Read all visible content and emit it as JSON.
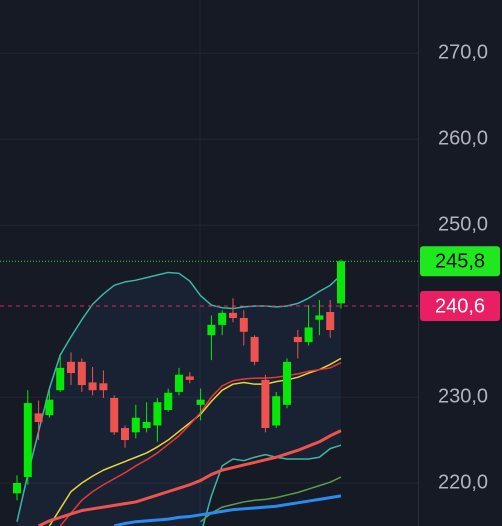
{
  "chart_data": {
    "type": "candlestick",
    "ylim": [
      215.0,
      276.2
    ],
    "yticks": [
      {
        "value": 220,
        "label": "220,0"
      },
      {
        "value": 230,
        "label": "230,0"
      },
      {
        "value": 250,
        "label": "250,0"
      },
      {
        "value": 260,
        "label": "260,0"
      },
      {
        "value": 270,
        "label": "270,0"
      }
    ],
    "grid": true,
    "up_color": "#08e808",
    "down_color": "#ef5350",
    "open": [
      218.8,
      220.7,
      228.1,
      227.9,
      230.8,
      234.1,
      234.1,
      231.7,
      231.6,
      229.9,
      226.4,
      225.9,
      226.4,
      226.7,
      228.5,
      230.6,
      232.4,
      229.1,
      237.2,
      238.4,
      239.8,
      239.2,
      237.0,
      232.0,
      226.7,
      229.1,
      237.0,
      236.4,
      239.0,
      239.9,
      240.9
    ],
    "high": [
      220.9,
      230.8,
      229.6,
      230.8,
      234.9,
      235.2,
      234.5,
      233.5,
      233.1,
      230.2,
      226.7,
      229.1,
      229.4,
      229.9,
      231.0,
      233.4,
      232.9,
      231.0,
      239.5,
      240.1,
      241.5,
      240.1,
      237.2,
      232.6,
      230.6,
      234.5,
      237.8,
      240.7,
      241.3,
      241.3,
      246.0
    ],
    "low": [
      218.0,
      219.8,
      225.0,
      227.6,
      230.6,
      231.4,
      230.6,
      230.2,
      229.9,
      225.6,
      224.1,
      225.2,
      225.9,
      224.8,
      228.3,
      230.2,
      231.6,
      227.3,
      234.3,
      237.2,
      238.7,
      236.0,
      233.7,
      225.9,
      226.4,
      228.7,
      234.5,
      236.0,
      237.2,
      236.9,
      240.3
    ],
    "close": [
      220.0,
      229.3,
      227.1,
      229.7,
      233.4,
      232.8,
      231.4,
      230.8,
      230.8,
      225.9,
      225.0,
      227.6,
      227.1,
      229.4,
      230.5,
      232.6,
      232.0,
      229.7,
      238.4,
      239.8,
      239.2,
      237.6,
      234.1,
      226.4,
      230.1,
      234.1,
      236.4,
      238.1,
      239.5,
      237.8,
      245.8
    ],
    "series": [
      {
        "color": "#3fb5a5",
        "values": [
          215.5,
          221.0,
          226.0,
          231.0,
          234.9,
          237.0,
          239.0,
          240.8,
          242.0,
          243.0,
          243.4,
          243.6,
          243.9,
          244.2,
          244.5,
          244.4,
          243.5,
          241.8,
          240.7,
          240.4,
          240.3,
          240.5,
          240.6,
          240.6,
          240.5,
          240.6,
          240.9,
          241.5,
          242.3,
          243.0,
          244.2
        ]
      },
      {
        "color": "#3fb5a5",
        "values": [
          null,
          null,
          null,
          null,
          null,
          null,
          null,
          null,
          null,
          null,
          null,
          null,
          null,
          null,
          null,
          null,
          null,
          214.0,
          218.5,
          222.0,
          222.8,
          222.6,
          223.0,
          223.3,
          223.0,
          222.8,
          222.8,
          222.8,
          223.0,
          224.0,
          224.4
        ]
      },
      {
        "color": "#e8d43a",
        "values": [
          null,
          null,
          null,
          215.0,
          217.0,
          219.0,
          220.0,
          220.8,
          221.5,
          222.0,
          222.5,
          223.0,
          223.5,
          224.2,
          225.0,
          226.0,
          227.0,
          228.0,
          229.5,
          230.8,
          231.5,
          231.7,
          231.5,
          231.5,
          231.8,
          232.0,
          232.3,
          232.8,
          233.2,
          233.8,
          234.5
        ]
      },
      {
        "color": "#e53935",
        "values": [
          null,
          null,
          null,
          null,
          215.0,
          216.5,
          218.0,
          219.0,
          219.8,
          220.5,
          221.2,
          222.0,
          222.7,
          223.5,
          224.5,
          225.5,
          226.8,
          228.2,
          230.0,
          231.3,
          231.9,
          232.1,
          232.2,
          232.2,
          232.3,
          232.5,
          232.7,
          233.0,
          233.2,
          233.4,
          234.0
        ]
      },
      {
        "color": "#ef5350",
        "values": [
          null,
          null,
          215.0,
          215.6,
          216.0,
          216.4,
          216.8,
          217.0,
          217.2,
          217.4,
          217.6,
          217.8,
          218.2,
          218.6,
          219.0,
          219.4,
          219.8,
          220.3,
          221.0,
          221.5,
          221.8,
          222.1,
          222.4,
          222.7,
          223.0,
          223.4,
          223.8,
          224.3,
          224.8,
          225.5,
          226.1
        ]
      },
      {
        "color": "#5b9e4d",
        "values": [
          null,
          null,
          null,
          null,
          null,
          null,
          null,
          null,
          null,
          null,
          null,
          null,
          null,
          null,
          null,
          null,
          null,
          215.5,
          216.5,
          217.2,
          217.5,
          217.8,
          218.0,
          218.1,
          218.3,
          218.6,
          218.9,
          219.3,
          219.7,
          220.1,
          220.7
        ]
      },
      {
        "color": "#2a8cf0",
        "values": [
          null,
          null,
          null,
          null,
          null,
          null,
          null,
          null,
          null,
          215.0,
          215.3,
          215.5,
          215.6,
          215.7,
          215.8,
          216.0,
          216.1,
          216.3,
          216.5,
          216.7,
          216.9,
          217.0,
          217.1,
          217.2,
          217.3,
          217.5,
          217.7,
          217.9,
          218.1,
          218.3,
          218.5
        ]
      }
    ],
    "price_lines": [
      {
        "value": 245.8,
        "label": "245,8",
        "color": "#1fe81f",
        "text_color": "#0b0e14",
        "style": "dotted"
      },
      {
        "value": 240.6,
        "label": "240,6",
        "color": "#e91e63",
        "text_color": "#ffffff",
        "style": "dashed"
      }
    ]
  }
}
